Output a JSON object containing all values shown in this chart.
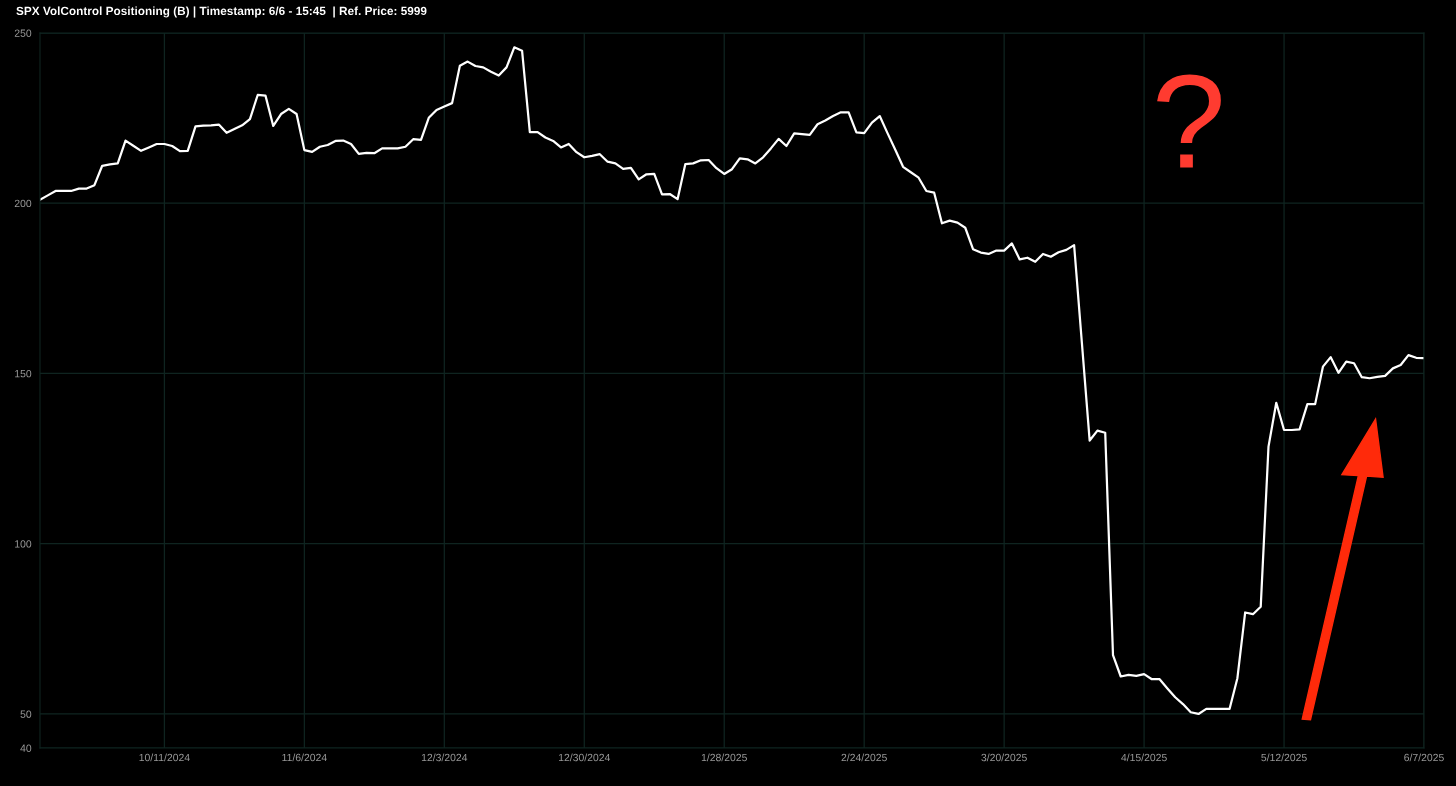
{
  "chart_data": {
    "type": "line",
    "title": "SPX VolControl Positioning (B) | Timestamp: 6/6 - 15:45  | Ref. Price: 5999",
    "categories": [
      null,
      null,
      null,
      null,
      null,
      null,
      null,
      null,
      null,
      null,
      null,
      null,
      null,
      null,
      null,
      null,
      "10/11/2024",
      null,
      null,
      null,
      null,
      null,
      null,
      null,
      null,
      null,
      null,
      null,
      null,
      null,
      null,
      null,
      null,
      null,
      "11/6/2024",
      null,
      null,
      null,
      null,
      null,
      null,
      null,
      null,
      null,
      null,
      null,
      null,
      null,
      null,
      null,
      null,
      null,
      "12/3/2024",
      null,
      null,
      null,
      null,
      null,
      null,
      null,
      null,
      null,
      null,
      null,
      null,
      null,
      null,
      null,
      null,
      null,
      "12/30/2024",
      null,
      null,
      null,
      null,
      null,
      null,
      null,
      null,
      null,
      null,
      null,
      null,
      null,
      null,
      null,
      null,
      null,
      "1/28/2025",
      null,
      null,
      null,
      null,
      null,
      null,
      null,
      null,
      null,
      null,
      null,
      null,
      null,
      null,
      null,
      null,
      null,
      "2/24/2025",
      null,
      null,
      null,
      null,
      null,
      null,
      null,
      null,
      null,
      null,
      null,
      null,
      null,
      null,
      null,
      null,
      null,
      "3/20/2025",
      null,
      null,
      null,
      null,
      null,
      null,
      null,
      null,
      null,
      null,
      null,
      null,
      null,
      null,
      null,
      null,
      null,
      "4/15/2025",
      null,
      null,
      null,
      null,
      null,
      null,
      null,
      null,
      null,
      null,
      null,
      null,
      null,
      null,
      null,
      null,
      null,
      "5/12/2025",
      null,
      null,
      null,
      null,
      null,
      null,
      null,
      null,
      null,
      null,
      null,
      null,
      null,
      null,
      null,
      null,
      null,
      "6/7/2025"
    ],
    "series": [
      {
        "color": "#ffffff",
        "values": [
          201.0,
          202.3,
          203.6,
          203.6,
          203.6,
          204.3,
          204.3,
          205.3,
          211.0,
          211.4,
          211.7,
          218.4,
          216.9,
          215.4,
          216.4,
          217.4,
          217.4,
          216.8,
          215.3,
          215.4,
          222.6,
          222.8,
          222.9,
          223.1,
          220.7,
          221.8,
          222.9,
          224.7,
          231.8,
          231.6,
          222.7,
          226.2,
          227.7,
          226.2,
          215.6,
          215.1,
          216.6,
          217.1,
          218.3,
          218.4,
          217.4,
          214.5,
          214.8,
          214.7,
          216.1,
          216.1,
          216.1,
          216.6,
          218.8,
          218.6,
          225.1,
          227.4,
          228.4,
          229.4,
          240.4,
          241.6,
          240.3,
          239.9,
          238.6,
          237.5,
          239.9,
          245.8,
          244.8,
          220.9,
          220.9,
          219.3,
          218.3,
          216.4,
          217.4,
          215.0,
          213.5,
          213.9,
          214.4,
          212.2,
          211.7,
          210.1,
          210.4,
          207.0,
          208.5,
          208.6,
          202.6,
          202.7,
          201.2,
          211.5,
          211.7,
          212.6,
          212.7,
          210.3,
          208.6,
          210.0,
          213.2,
          212.9,
          211.7,
          213.5,
          216.1,
          218.9,
          216.8,
          220.5,
          220.3,
          220.1,
          223.2,
          224.3,
          225.6,
          226.7,
          226.7,
          220.8,
          220.6,
          223.7,
          225.6,
          220.6,
          215.7,
          210.7,
          209.1,
          207.5,
          203.6,
          203.1,
          194.1,
          194.9,
          194.3,
          192.8,
          186.5,
          185.5,
          185.1,
          186.1,
          186.1,
          188.2,
          183.5,
          184.0,
          182.8,
          185.1,
          184.3,
          185.6,
          186.3,
          187.7,
          159.0,
          130.3,
          133.2,
          132.6,
          67.3,
          61.0,
          61.5,
          61.2,
          61.7,
          60.2,
          60.2,
          57.5,
          54.9,
          52.9,
          50.5,
          50.0,
          51.5,
          51.5,
          51.5,
          51.5,
          60.5,
          79.8,
          79.3,
          81.5,
          128.5,
          141.4,
          133.4,
          133.4,
          133.6,
          141.0,
          141.0,
          152.0,
          154.8,
          150.2,
          153.5,
          153.0,
          148.9,
          148.6,
          149.0,
          149.3,
          151.5,
          152.5,
          155.4,
          154.6,
          154.5
        ]
      }
    ],
    "ylim": [
      40,
      250
    ],
    "yticks": [
      40,
      50,
      100,
      150,
      200,
      250
    ],
    "grid": true,
    "annotations": [
      "?"
    ]
  }
}
